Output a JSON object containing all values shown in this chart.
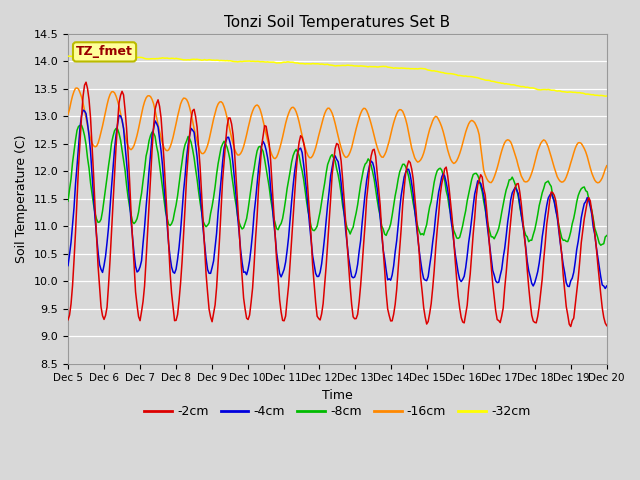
{
  "title": "Tonzi Soil Temperatures Set B",
  "xlabel": "Time",
  "ylabel": "Soil Temperature (C)",
  "ylim": [
    8.5,
    14.5
  ],
  "background_color": "#d8d8d8",
  "plot_bg_color": "#d8d8d8",
  "grid_color": "#ffffff",
  "legend_label": "TZ_fmet",
  "legend_box_color": "#ffff99",
  "legend_box_edge": "#bbbb00",
  "line_colors": {
    "-2cm": "#dd0000",
    "-4cm": "#0000dd",
    "-8cm": "#00bb00",
    "-16cm": "#ff8800",
    "-32cm": "#ffff00"
  },
  "xtick_labels": [
    "Dec 5",
    "Dec 6",
    "Dec 7",
    "Dec 8",
    "Dec 9",
    "Dec 10",
    "Dec 11",
    "Dec 12",
    "Dec 13",
    "Dec 14",
    "Dec 15",
    "Dec 16",
    "Dec 17",
    "Dec 18",
    "Dec 19",
    "Dec 20"
  ],
  "ytick_positions": [
    8.5,
    9.0,
    9.5,
    10.0,
    10.5,
    11.0,
    11.5,
    12.0,
    12.5,
    13.0,
    13.5,
    14.0,
    14.5
  ],
  "n_days": 15,
  "pts_per_day": 24
}
